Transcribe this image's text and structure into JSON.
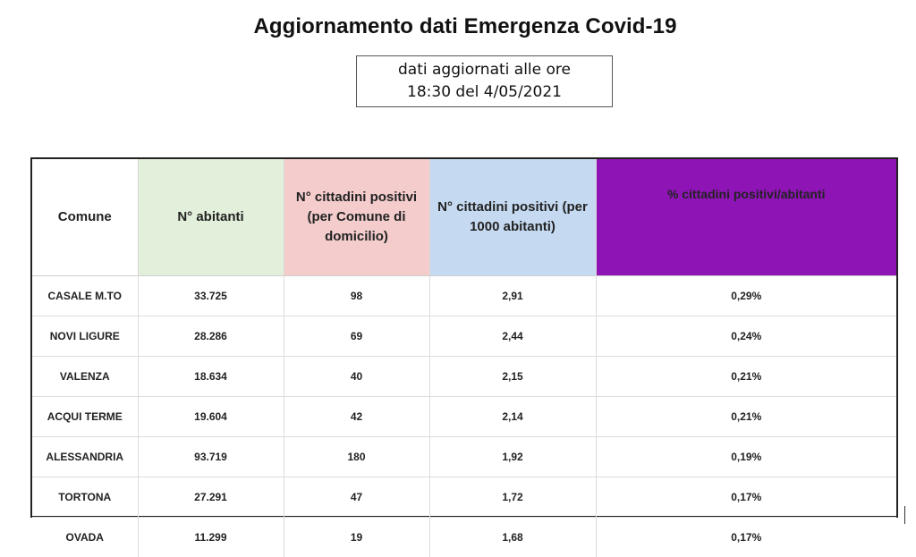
{
  "title": "Aggiornamento dati Emergenza Covid-19",
  "update": {
    "line1": "dati aggiornati alle ore",
    "line2": "18:30 del 4/05/2021"
  },
  "table": {
    "headers": [
      "Comune",
      "N° abitanti",
      "N° cittadini positivi (per Comune di domicilio)",
      "N° cittadini positivi (per 1000 abitanti)",
      "% cittadini positivi/abitanti"
    ],
    "header_colors": [
      "#ffffff",
      "#e2efda",
      "#f4cccc",
      "#c5d9f0",
      "#8e14b5"
    ],
    "rows": [
      [
        "CASALE M.TO",
        "33.725",
        "98",
        "2,91",
        "0,29%"
      ],
      [
        "NOVI LIGURE",
        "28.286",
        "69",
        "2,44",
        "0,24%"
      ],
      [
        "VALENZA",
        "18.634",
        "40",
        "2,15",
        "0,21%"
      ],
      [
        "ACQUI TERME",
        "19.604",
        "42",
        "2,14",
        "0,21%"
      ],
      [
        "ALESSANDRIA",
        "93.719",
        "180",
        "1,92",
        "0,19%"
      ],
      [
        "TORTONA",
        "27.291",
        "47",
        "1,72",
        "0,17%"
      ],
      [
        "OVADA",
        "11.299",
        "19",
        "1,68",
        "0,17%"
      ]
    ]
  }
}
